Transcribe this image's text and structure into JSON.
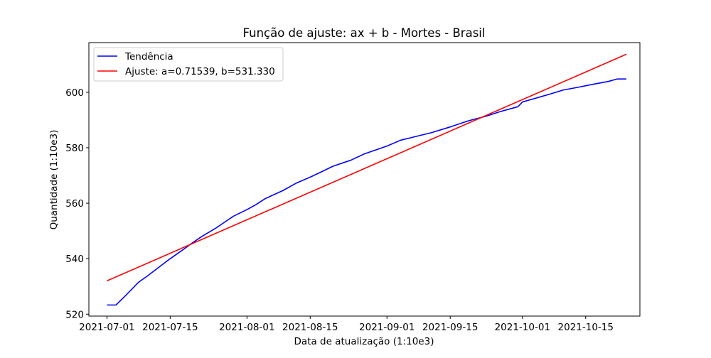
{
  "chart_data": {
    "type": "line",
    "title": "Função de ajuste: ax + b - Mortes - Brasil",
    "xlabel": "Data de atualização (1:10e3)",
    "ylabel": "Quantidade (1:10e3)",
    "x_range": [
      "2021-06-27",
      "2021-10-27"
    ],
    "ylim": [
      519.3,
      617.9
    ],
    "x_ticks": [
      "2021-07-01",
      "2021-07-15",
      "2021-08-01",
      "2021-08-15",
      "2021-09-01",
      "2021-09-15",
      "2021-10-01",
      "2021-10-15"
    ],
    "y_ticks": [
      520,
      540,
      560,
      580,
      600
    ],
    "grid": false,
    "legend_position": "upper left",
    "series": [
      {
        "name": "Tendência",
        "color": "#0000ff",
        "points": [
          [
            "2021-07-01",
            523.3
          ],
          [
            "2021-07-03",
            523.3
          ],
          [
            "2021-07-05",
            526.5
          ],
          [
            "2021-07-08",
            531.5
          ],
          [
            "2021-07-10",
            533.8
          ],
          [
            "2021-07-12",
            536.3
          ],
          [
            "2021-07-15",
            540.0
          ],
          [
            "2021-07-18",
            543.4
          ],
          [
            "2021-07-20",
            545.8
          ],
          [
            "2021-07-22",
            548.0
          ],
          [
            "2021-07-25",
            550.9
          ],
          [
            "2021-07-27",
            553.1
          ],
          [
            "2021-07-29",
            555.3
          ],
          [
            "2021-08-01",
            557.7
          ],
          [
            "2021-08-03",
            559.5
          ],
          [
            "2021-08-05",
            561.6
          ],
          [
            "2021-08-09",
            564.6
          ],
          [
            "2021-08-12",
            567.3
          ],
          [
            "2021-08-15",
            569.4
          ],
          [
            "2021-08-18",
            571.7
          ],
          [
            "2021-08-20",
            573.3
          ],
          [
            "2021-08-24",
            575.5
          ],
          [
            "2021-08-27",
            577.8
          ],
          [
            "2021-09-01",
            580.6
          ],
          [
            "2021-09-04",
            582.7
          ],
          [
            "2021-09-07",
            583.9
          ],
          [
            "2021-09-11",
            585.5
          ],
          [
            "2021-09-15",
            587.5
          ],
          [
            "2021-09-19",
            589.7
          ],
          [
            "2021-09-23",
            591.4
          ],
          [
            "2021-09-26",
            593.0
          ],
          [
            "2021-09-30",
            594.8
          ],
          [
            "2021-10-01",
            596.5
          ],
          [
            "2021-10-04",
            597.9
          ],
          [
            "2021-10-07",
            599.3
          ],
          [
            "2021-10-10",
            600.8
          ],
          [
            "2021-10-13",
            601.7
          ],
          [
            "2021-10-17",
            603.0
          ],
          [
            "2021-10-20",
            603.9
          ],
          [
            "2021-10-22",
            604.8
          ],
          [
            "2021-10-24",
            604.8
          ]
        ]
      },
      {
        "name": "Ajuste: a=0.71539, b=531.330",
        "color": "#ff0000",
        "points": [
          [
            "2021-07-01",
            532.0
          ],
          [
            "2021-10-24",
            613.7
          ]
        ]
      }
    ]
  }
}
